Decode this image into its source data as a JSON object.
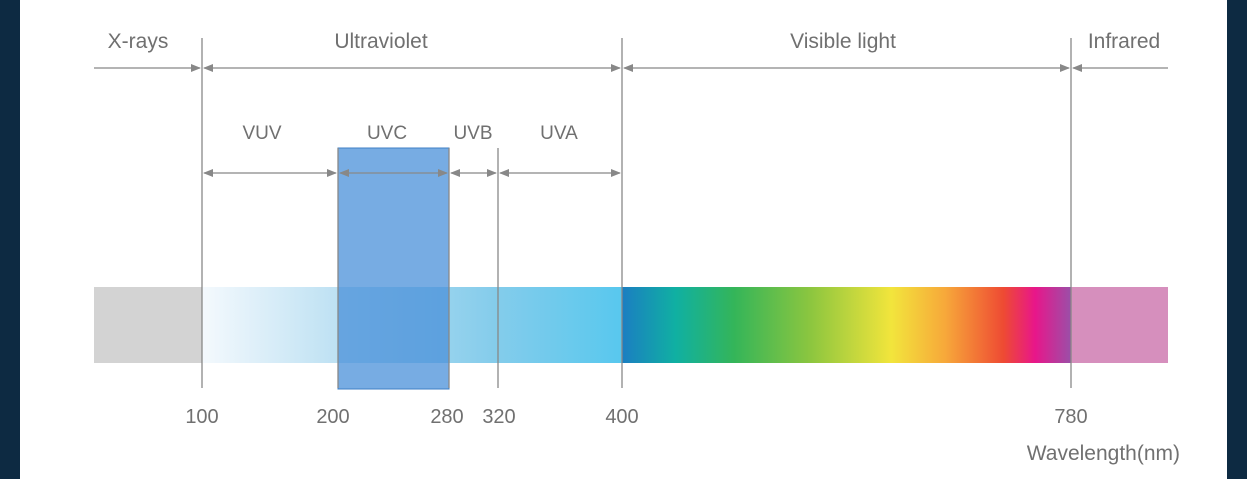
{
  "regions": {
    "xrays": "X-rays",
    "ultraviolet": "Ultraviolet",
    "visible": "Visible light",
    "infrared": "Infrared"
  },
  "uv_bands": {
    "vuv": "VUV",
    "uvc": "UVC",
    "uvb": "UVB",
    "uva": "UVA"
  },
  "ticks": [
    "100",
    "200",
    "280",
    "320",
    "400",
    "780"
  ],
  "axis_label": "Wavelength(nm)",
  "colors": {
    "background": "#0d2a42",
    "uvc_highlight": "#4a90d9",
    "line": "#888888",
    "label": "#707070",
    "xray_band": "#d3d3d3",
    "infrared_band": "#d68fbd"
  }
}
